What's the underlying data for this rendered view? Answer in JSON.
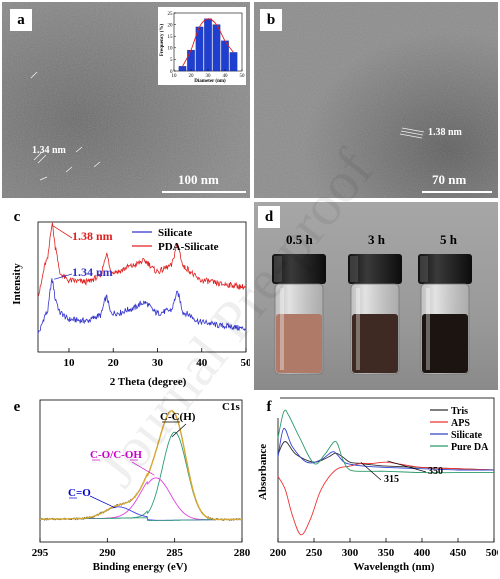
{
  "panels": {
    "a": {
      "label": "a",
      "scale_bar": "100 nm",
      "lattice": "1.34 nm",
      "inset": {
        "type": "bar",
        "ylabel": "Frequency (%)",
        "xlabel": "Diameter (nm)",
        "xticks": [
          "10",
          "20",
          "30",
          "40",
          "50"
        ],
        "yticks": [
          "0",
          "5",
          "10",
          "15",
          "20",
          "25"
        ],
        "centers": [
          15,
          20,
          25,
          30,
          35,
          40,
          45
        ],
        "values": [
          2,
          9,
          19,
          22.5,
          20,
          13,
          8
        ]
      }
    },
    "b": {
      "label": "b",
      "scale_bar": "70 nm",
      "lattice": "1.38 nm"
    },
    "c": {
      "label": "c",
      "chart_data": {
        "type": "line",
        "xlabel": "2 Theta (degree)",
        "ylabel": "Intensity",
        "xlim": [
          3,
          50
        ],
        "xticks": [
          10,
          20,
          30,
          40,
          50
        ],
        "series": [
          {
            "name": "Silicate",
            "color": "#3333cc",
            "x": [
              3,
              5,
              6.2,
              7,
              8,
              10,
              14,
              17,
              18.5,
              19.5,
              21,
              24,
              27,
              30,
              33,
              34.5,
              36,
              40,
              45,
              50
            ],
            "y": [
              0.15,
              0.3,
              0.55,
              0.4,
              0.3,
              0.25,
              0.24,
              0.28,
              0.42,
              0.3,
              0.3,
              0.33,
              0.38,
              0.3,
              0.32,
              0.45,
              0.3,
              0.23,
              0.2,
              0.18
            ]
          },
          {
            "name": "PDA-Silicate",
            "color": "#e02020",
            "x": [
              3,
              5,
              6.2,
              7,
              8,
              10,
              14,
              17,
              18.5,
              19.5,
              21,
              24,
              27,
              30,
              33,
              34.5,
              36,
              40,
              45,
              50
            ],
            "y": [
              0.45,
              0.7,
              0.98,
              0.8,
              0.6,
              0.55,
              0.54,
              0.58,
              0.75,
              0.62,
              0.62,
              0.66,
              0.7,
              0.62,
              0.66,
              0.82,
              0.65,
              0.55,
              0.52,
              0.5
            ]
          }
        ],
        "annotations": [
          {
            "text": "1.38 nm",
            "color": "#e02020"
          },
          {
            "text": "1.34 nm",
            "color": "#3333cc"
          }
        ]
      }
    },
    "d": {
      "label": "d",
      "times": [
        "0.5 h",
        "3 h",
        "5 h"
      ],
      "liquid_colors": [
        "#b07a68",
        "#3e2a22",
        "#1c1410"
      ]
    },
    "e": {
      "label": "e",
      "chart_data": {
        "type": "line",
        "title": "C1s",
        "xlabel": "Binding energy (eV)",
        "xlim": [
          295,
          280
        ],
        "xticks": [
          295,
          290,
          285,
          280
        ],
        "annotations": [
          {
            "text": "C-C(H)",
            "color": "#000000"
          },
          {
            "text": "C-O/C-OH",
            "color": "#cc00cc"
          },
          {
            "text": "C=O",
            "color": "#0000cc"
          }
        ],
        "components": [
          {
            "name": "C-C(H)",
            "center": 285.0,
            "height": 0.62,
            "width": 0.9,
            "color": "#2a9a7a"
          },
          {
            "name": "C-O/C-OH",
            "center": 286.4,
            "height": 0.3,
            "width": 1.1,
            "color": "#e040e0"
          },
          {
            "name": "C=O",
            "center": 289.2,
            "height": 0.08,
            "width": 1.0,
            "color": "#4040e0"
          }
        ],
        "baseline": 0.14
      }
    },
    "f": {
      "label": "f",
      "chart_data": {
        "type": "line",
        "xlabel": "Wavelength (nm)",
        "ylabel": "Absorbance",
        "xlim": [
          200,
          500
        ],
        "xticks": [
          200,
          250,
          300,
          350,
          400,
          450,
          500
        ],
        "annotations": [
          "315",
          "350"
        ],
        "series": [
          {
            "name": "Tris",
            "color": "#333333",
            "x": [
              200,
              210,
              225,
              250,
              270,
              280,
              290,
              300,
              315,
              330,
              350,
              400,
              450,
              500
            ],
            "y": [
              0.62,
              0.72,
              0.62,
              0.56,
              0.6,
              0.63,
              0.6,
              0.56,
              0.55,
              0.54,
              0.53,
              0.52,
              0.51,
              0.5
            ]
          },
          {
            "name": "APS",
            "color": "#ee3333",
            "x": [
              200,
              210,
              220,
              232,
              245,
              260,
              280,
              300,
              315,
              330,
              350,
              375,
              400,
              450,
              500
            ],
            "y": [
              0.45,
              0.35,
              0.15,
              0.0,
              0.12,
              0.35,
              0.5,
              0.53,
              0.55,
              0.55,
              0.56,
              0.54,
              0.52,
              0.51,
              0.5
            ]
          },
          {
            "name": "Silicate",
            "color": "#3344cc",
            "x": [
              200,
              208,
              220,
              240,
              260,
              275,
              282,
              292,
              305,
              320,
              350,
              400,
              450,
              500
            ],
            "y": [
              0.6,
              0.82,
              0.68,
              0.56,
              0.58,
              0.64,
              0.62,
              0.56,
              0.54,
              0.53,
              0.52,
              0.51,
              0.5,
              0.5
            ]
          },
          {
            "name": "Pure DA",
            "color": "#2a9a6a",
            "x": [
              200,
              208,
              215,
              230,
              250,
              265,
              280,
              290,
              300,
              320,
              350,
              400,
              450,
              500
            ],
            "y": [
              0.75,
              0.95,
              0.92,
              0.75,
              0.55,
              0.62,
              0.72,
              0.58,
              0.5,
              0.49,
              0.49,
              0.48,
              0.48,
              0.48
            ]
          }
        ]
      }
    }
  },
  "watermark": "Journal Pre-proof"
}
